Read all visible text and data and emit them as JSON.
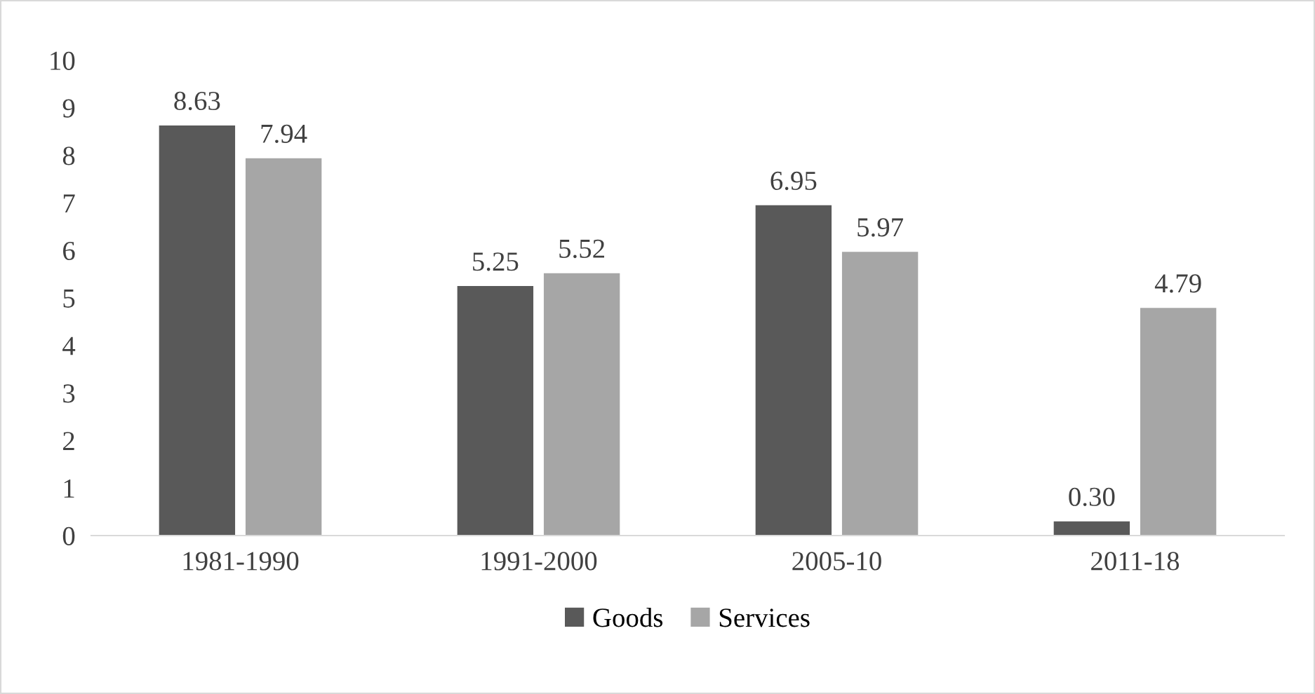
{
  "chart_data": {
    "type": "bar",
    "categories": [
      "1981-1990",
      "1991-2000",
      "2005-10",
      "2011-18"
    ],
    "series": [
      {
        "name": "Goods",
        "color": "#595959",
        "values": [
          8.63,
          5.25,
          6.95,
          0.3
        ],
        "value_labels": [
          "8.63",
          "5.25",
          "6.95",
          "0.30"
        ]
      },
      {
        "name": "Services",
        "color": "#a6a6a6",
        "values": [
          7.94,
          5.52,
          5.97,
          4.79
        ],
        "value_labels": [
          "7.94",
          "5.52",
          "5.97",
          "4.79"
        ]
      }
    ],
    "ylim": [
      0,
      10
    ],
    "yticks": [
      0,
      1,
      2,
      3,
      4,
      5,
      6,
      7,
      8,
      9,
      10
    ],
    "grid": false,
    "legend": "bottom"
  }
}
